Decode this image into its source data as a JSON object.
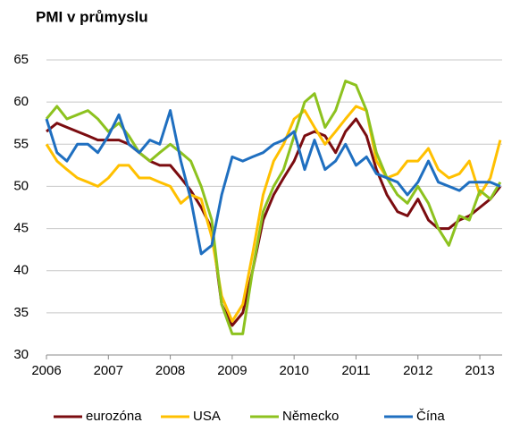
{
  "chart_data": {
    "type": "line",
    "title": "PMI v průmyslu",
    "x": [
      2006,
      2006.17,
      2006.33,
      2006.5,
      2006.67,
      2006.83,
      2007,
      2007.17,
      2007.33,
      2007.5,
      2007.67,
      2007.83,
      2008,
      2008.17,
      2008.33,
      2008.5,
      2008.67,
      2008.83,
      2009,
      2009.17,
      2009.33,
      2009.5,
      2009.67,
      2009.83,
      2010,
      2010.17,
      2010.33,
      2010.5,
      2010.67,
      2010.83,
      2011,
      2011.17,
      2011.33,
      2011.5,
      2011.67,
      2011.83,
      2012,
      2012.17,
      2012.33,
      2012.5,
      2012.67,
      2012.83,
      2013,
      2013.17,
      2013.33
    ],
    "series": [
      {
        "name": "eurozóna",
        "color": "#7b0c10",
        "values": [
          56.5,
          57.5,
          57,
          56.5,
          56,
          55.5,
          55.5,
          55.5,
          55,
          54,
          53,
          52.5,
          52.5,
          51,
          49.5,
          47.5,
          45,
          36,
          33.5,
          35,
          40,
          46,
          49,
          51,
          53,
          56,
          56.5,
          56,
          54,
          56.5,
          58,
          56,
          52,
          49,
          47,
          46.5,
          48.5,
          46,
          45,
          45,
          46,
          46.5,
          47.5,
          48.5,
          50
        ]
      },
      {
        "name": "USA",
        "color": "#ffc000",
        "values": [
          55,
          53,
          52,
          51,
          50.5,
          50,
          51,
          52.5,
          52.5,
          51,
          51,
          50.5,
          50,
          48,
          49,
          48.5,
          44,
          37,
          34,
          36,
          42,
          49,
          53,
          55,
          58,
          59,
          57,
          55,
          56.5,
          58,
          59.5,
          59,
          53,
          51,
          51.5,
          53,
          53,
          54.5,
          52,
          51,
          51.5,
          53,
          49,
          51,
          55.5
        ]
      },
      {
        "name": "Německo",
        "color": "#8dc21f",
        "values": [
          58,
          59.5,
          58,
          58.5,
          59,
          58,
          56.5,
          57.5,
          56,
          54,
          53,
          54,
          55,
          54,
          53,
          50,
          46,
          36,
          32.5,
          32.5,
          40,
          47,
          50,
          52,
          56,
          60,
          61,
          57,
          59,
          62.5,
          62,
          59,
          54,
          51,
          49,
          48,
          50,
          48,
          45,
          43,
          46.5,
          46,
          49.5,
          48.5,
          50.5
        ]
      },
      {
        "name": "Čína",
        "color": "#1f6fc0",
        "values": [
          58,
          54,
          53,
          55,
          55,
          54,
          56,
          58.5,
          55,
          54,
          55.5,
          55,
          59,
          53,
          48.5,
          42,
          43,
          49,
          53.5,
          53,
          53.5,
          54,
          55,
          55.5,
          56.5,
          52,
          55.5,
          52,
          53,
          55,
          52.5,
          53.5,
          51.5,
          51,
          50.5,
          49,
          50.5,
          53,
          50.5,
          50,
          49.5,
          50.5,
          50.5,
          50.5,
          50
        ]
      }
    ],
    "xlim": [
      2006,
      2013.36
    ],
    "xticks": [
      2006,
      2007,
      2008,
      2009,
      2010,
      2011,
      2012,
      2013
    ],
    "ylim": [
      30,
      65
    ],
    "yticks": [
      30,
      35,
      40,
      45,
      50,
      55,
      60,
      65
    ],
    "grid": true,
    "legend": "bottom"
  }
}
